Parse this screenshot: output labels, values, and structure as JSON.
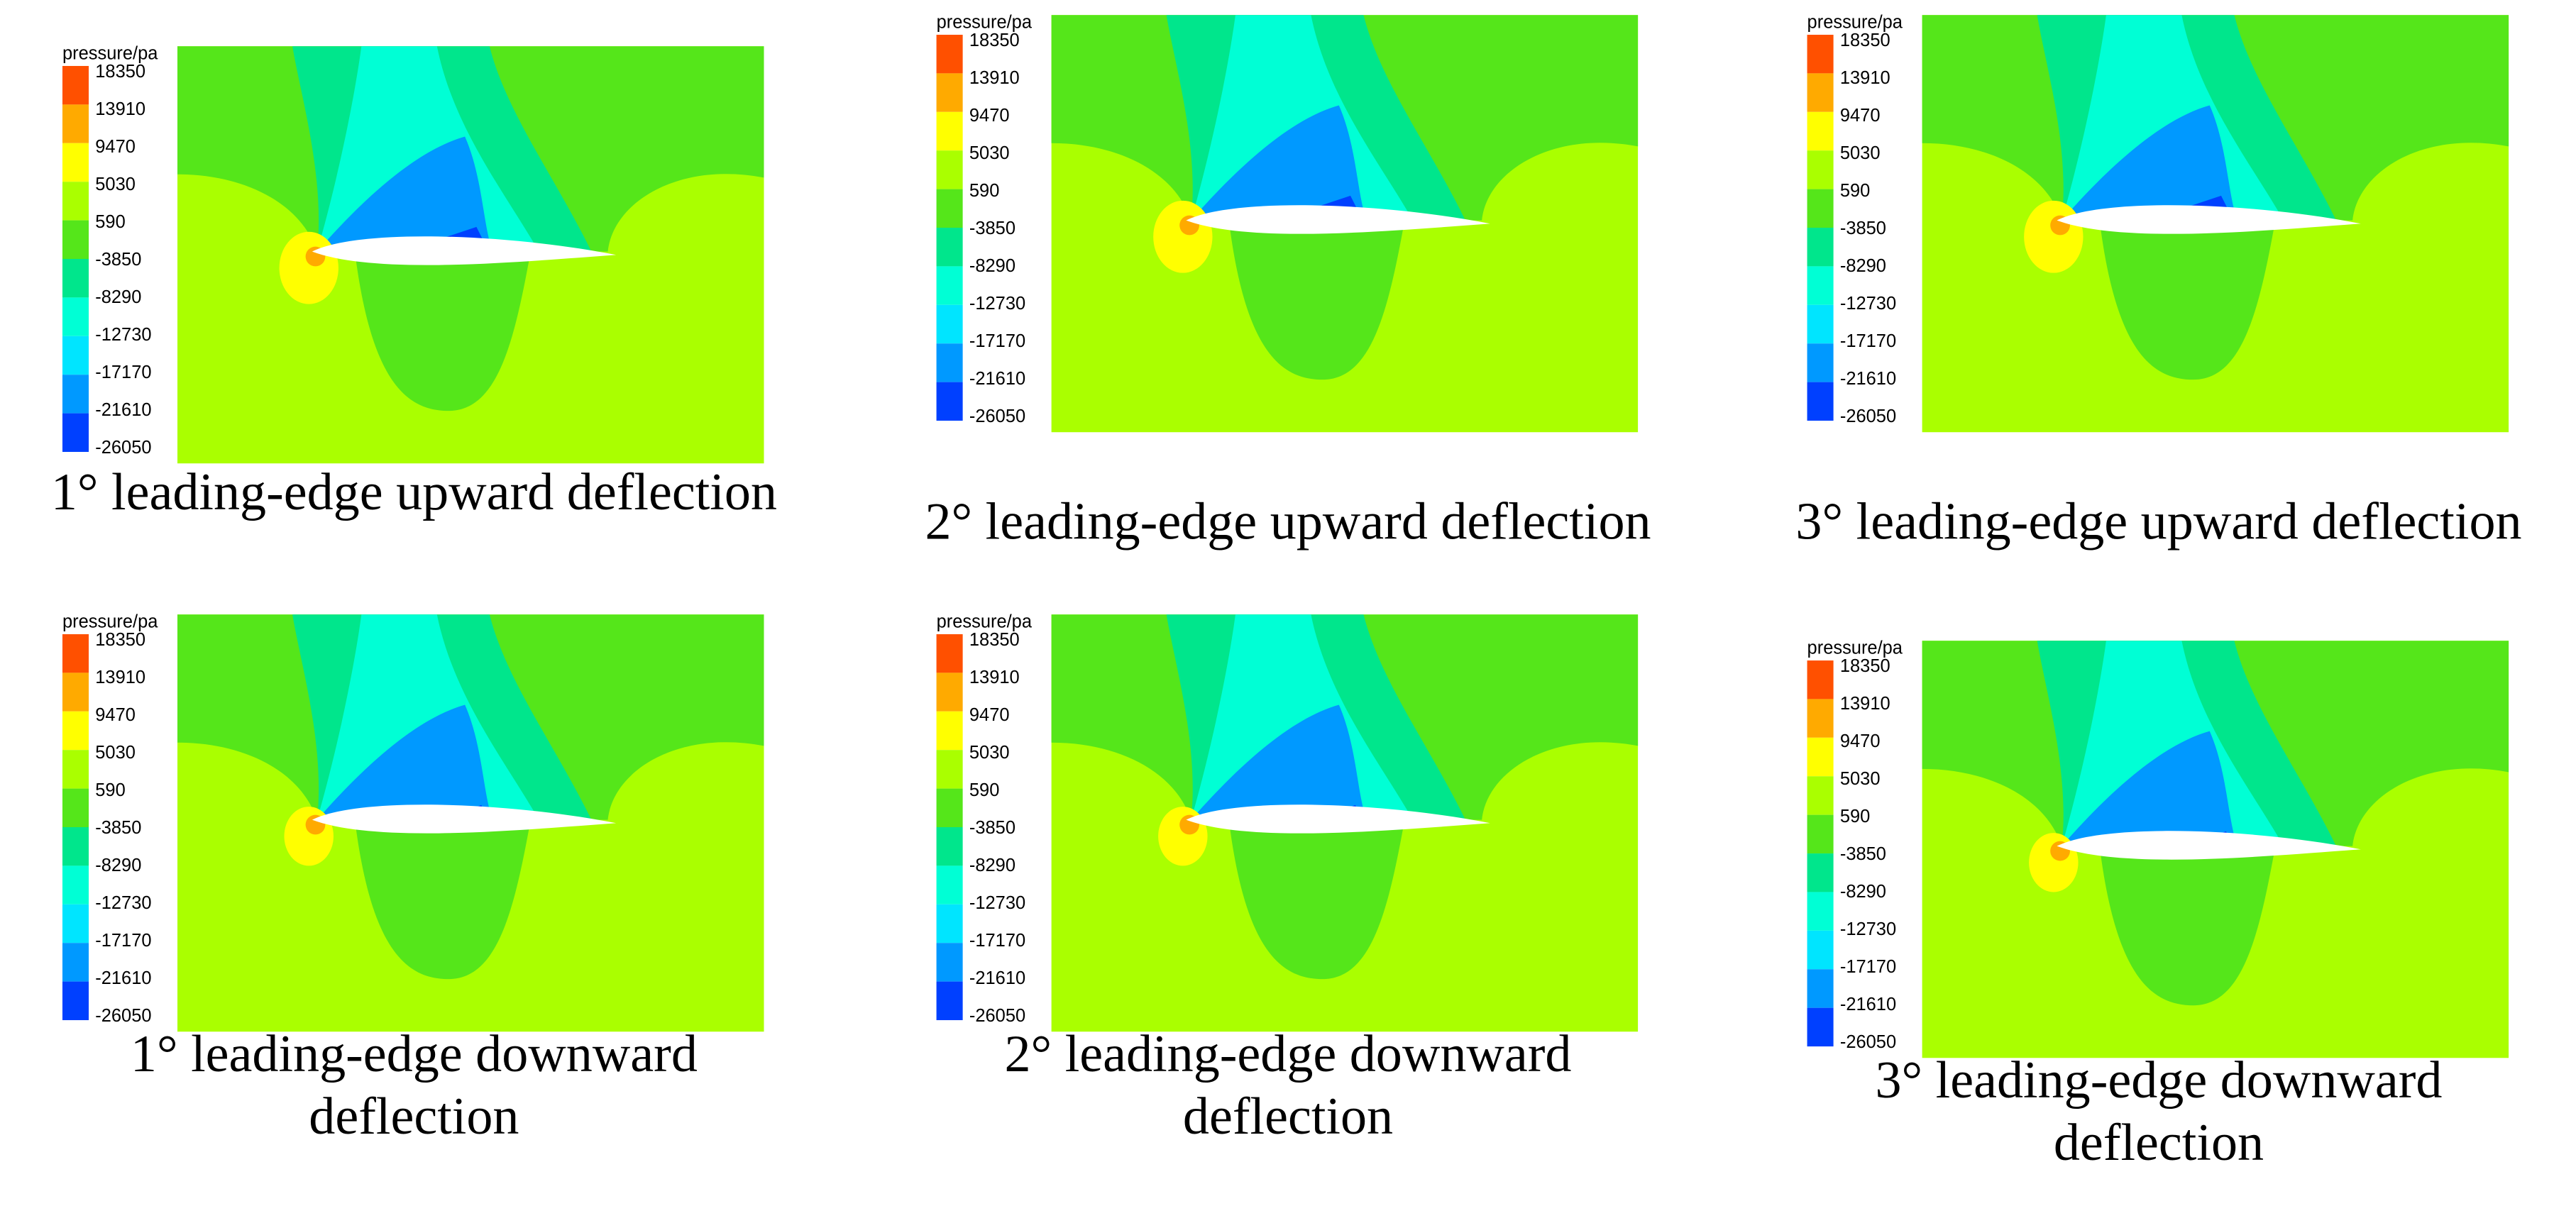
{
  "legend": {
    "title": "pressure/pa",
    "labels": [
      "18350",
      "13910",
      "9470",
      "5030",
      "590",
      "-3850",
      "-8290",
      "-12730",
      "-17170",
      "-21610",
      "-26050"
    ],
    "colors": [
      "#ff5000",
      "#ffaa00",
      "#ffff00",
      "#aaff00",
      "#55e61a",
      "#00e68c",
      "#00ffd5",
      "#00e5ff",
      "#0099ff",
      "#0040ff"
    ]
  },
  "panels": [
    {
      "caption": [
        "1° leading-edge upward deflection"
      ]
    },
    {
      "caption": [
        "2° leading-edge upward deflection"
      ]
    },
    {
      "caption": [
        "3° leading-edge upward deflection"
      ]
    },
    {
      "caption": [
        "1° leading-edge downward",
        "deflection"
      ]
    },
    {
      "caption": [
        "2° leading-edge downward",
        "deflection"
      ]
    },
    {
      "caption": [
        "3° leading-edge downward",
        "deflection"
      ]
    }
  ]
}
